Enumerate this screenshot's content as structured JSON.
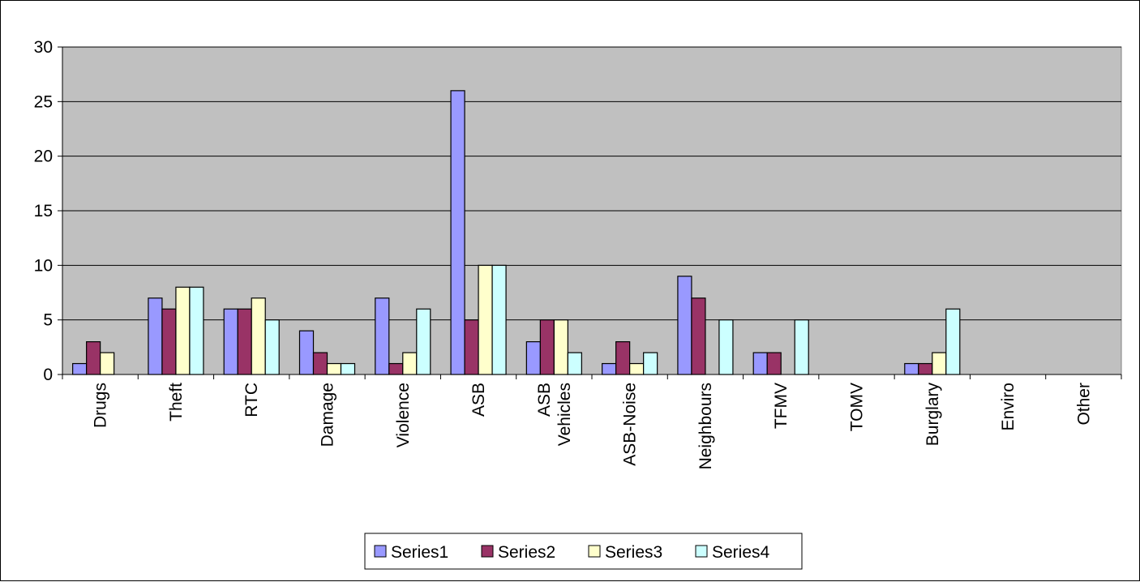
{
  "chart_data": {
    "type": "bar",
    "categories": [
      [
        "Drugs"
      ],
      [
        "Theft"
      ],
      [
        "RTC"
      ],
      [
        "Damage"
      ],
      [
        "Violence"
      ],
      [
        "ASB"
      ],
      [
        "ASB",
        "Vehicles"
      ],
      [
        "ASB-Noise"
      ],
      [
        "Neighbours"
      ],
      [
        "TFMV"
      ],
      [
        "TOMV"
      ],
      [
        "Burglary"
      ],
      [
        "Enviro"
      ],
      [
        "Other"
      ]
    ],
    "series": [
      {
        "name": "Series1",
        "color": "#9999ff",
        "values": [
          1,
          7,
          6,
          4,
          7,
          26,
          3,
          1,
          9,
          2,
          0,
          1,
          0,
          0
        ]
      },
      {
        "name": "Series2",
        "color": "#993366",
        "values": [
          3,
          6,
          6,
          2,
          1,
          5,
          5,
          3,
          7,
          2,
          0,
          1,
          0,
          0
        ]
      },
      {
        "name": "Series3",
        "color": "#ffffcc",
        "values": [
          2,
          8,
          7,
          1,
          2,
          10,
          5,
          1,
          0,
          0,
          0,
          2,
          0,
          0
        ]
      },
      {
        "name": "Series4",
        "color": "#ccffff",
        "values": [
          0,
          8,
          5,
          1,
          6,
          10,
          2,
          2,
          5,
          5,
          0,
          6,
          0,
          0
        ]
      }
    ],
    "ylim": [
      0,
      30
    ],
    "yticks": [
      0,
      5,
      10,
      15,
      20,
      25,
      30
    ],
    "plot_background": "#c0c0c0",
    "grid": true,
    "legend": "bottom",
    "title": "",
    "xlabel": "",
    "ylabel": ""
  }
}
